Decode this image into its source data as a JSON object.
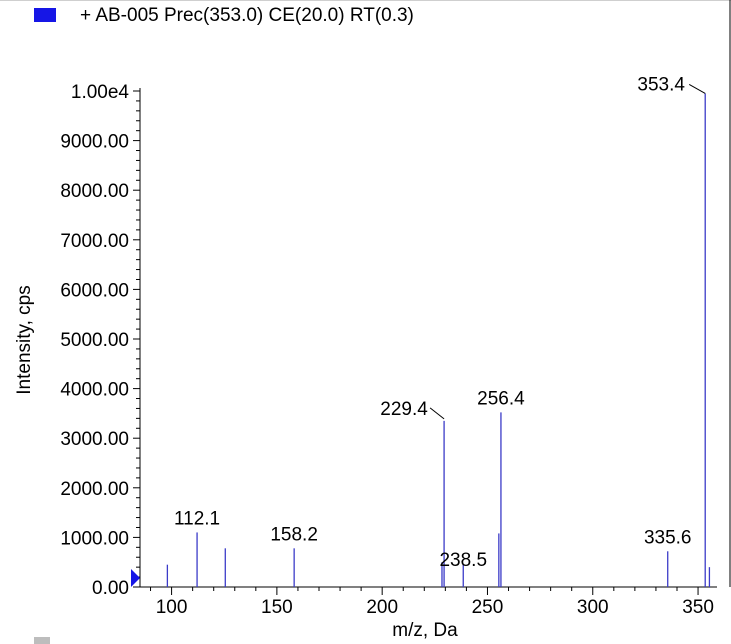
{
  "legend": {
    "label": "+ AB-005 Prec(353.0) CE(20.0) RT(0.3)",
    "swatch_color": "#1616e6"
  },
  "chart_data": {
    "type": "bar",
    "title": "+ AB-005 Prec(353.0) CE(20.0) RT(0.3)",
    "xlabel": "m/z, Da",
    "ylabel": "Intensity, cps",
    "xlim": [
      85,
      359
    ],
    "ylim": [
      0,
      10000
    ],
    "grid": false,
    "legend_position": "top-left",
    "series_color": "#3b3bc8",
    "x_ticks": [
      100,
      150,
      200,
      250,
      300,
      350
    ],
    "x_tick_labels": [
      "100",
      "150",
      "200",
      "250",
      "300",
      "350"
    ],
    "y_ticks": [
      0,
      1000,
      2000,
      3000,
      4000,
      5000,
      6000,
      7000,
      8000,
      9000,
      10000
    ],
    "y_tick_labels": [
      "0.00",
      "1000.00",
      "2000.00",
      "3000.00",
      "4000.00",
      "5000.00",
      "6000.00",
      "7000.00",
      "8000.00",
      "9000.00",
      "1.00e4"
    ],
    "peaks": [
      {
        "mz": 98.0,
        "intensity": 450
      },
      {
        "mz": 112.1,
        "intensity": 1100,
        "label": "112.1"
      },
      {
        "mz": 125.5,
        "intensity": 780
      },
      {
        "mz": 158.2,
        "intensity": 780,
        "label": "158.2"
      },
      {
        "mz": 228.4,
        "intensity": 500
      },
      {
        "mz": 229.4,
        "intensity": 3350,
        "label": "229.4"
      },
      {
        "mz": 238.5,
        "intensity": 460,
        "label": "238.5"
      },
      {
        "mz": 255.4,
        "intensity": 1080
      },
      {
        "mz": 256.4,
        "intensity": 3520,
        "label": "256.4"
      },
      {
        "mz": 335.6,
        "intensity": 720,
        "label": "335.6"
      },
      {
        "mz": 353.4,
        "intensity": 9950,
        "label": "353.4"
      },
      {
        "mz": 355.4,
        "intensity": 400
      }
    ]
  }
}
